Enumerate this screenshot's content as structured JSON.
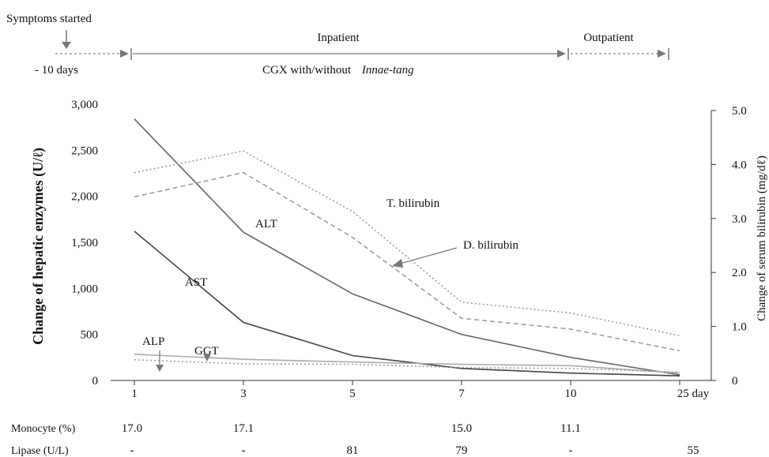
{
  "timeline": {
    "symptoms": "Symptoms started",
    "pre": "- 10 days",
    "inpatient": "Inpatient",
    "outpatient": "Outpatient",
    "treatment_prefix": "CGX with/without",
    "treatment_italic": "Innae-tang"
  },
  "chart_data": {
    "type": "line",
    "categories": [
      "1",
      "3",
      "5",
      "7",
      "10",
      "25 day"
    ],
    "ylabel": "Change of  hepatic enzymes (U/ℓ)",
    "y2label": "Change of  serum bilirubin  (mg/dℓ)",
    "ylim": [
      0,
      3000
    ],
    "y2lim": [
      0,
      5.0
    ],
    "yticks": [
      "0",
      "500",
      "1,000",
      "1,500",
      "2,000",
      "2,500",
      "3,000"
    ],
    "y2ticks": [
      "0",
      "1.0",
      "2.0",
      "3.0",
      "4.0",
      "5.0"
    ],
    "series": [
      {
        "name": "ALT",
        "axis": "left",
        "style": "solid",
        "color": "#666666",
        "values": [
          2840,
          1610,
          940,
          500,
          250,
          60
        ]
      },
      {
        "name": "AST",
        "axis": "left",
        "style": "solid",
        "color": "#444444",
        "values": [
          1620,
          630,
          270,
          130,
          80,
          50
        ]
      },
      {
        "name": "ALP",
        "axis": "left",
        "style": "solid",
        "color": "#aaaaaa",
        "values": [
          285,
          230,
          200,
          175,
          160,
          80
        ]
      },
      {
        "name": "GGT",
        "axis": "left",
        "style": "dotted",
        "color": "#999999",
        "values": [
          225,
          180,
          175,
          140,
          130,
          90
        ]
      },
      {
        "name": "T. bilirubin",
        "axis": "right",
        "style": "dotted",
        "color": "#999999",
        "values": [
          3.85,
          4.25,
          3.13,
          1.45,
          1.25,
          0.83
        ]
      },
      {
        "name": "D. bilirubin",
        "axis": "right",
        "style": "dashed",
        "color": "#999999",
        "values": [
          3.4,
          3.85,
          2.65,
          1.15,
          0.95,
          0.55
        ]
      }
    ]
  },
  "table": {
    "rows": [
      {
        "label": "Monocyte (%)",
        "values": [
          "17.0",
          "17.1",
          "",
          "15.0",
          "11.1",
          ""
        ]
      },
      {
        "label": "Lipase (U/L)",
        "values": [
          "-",
          "-",
          "81",
          "79",
          "-",
          "55"
        ]
      }
    ]
  }
}
